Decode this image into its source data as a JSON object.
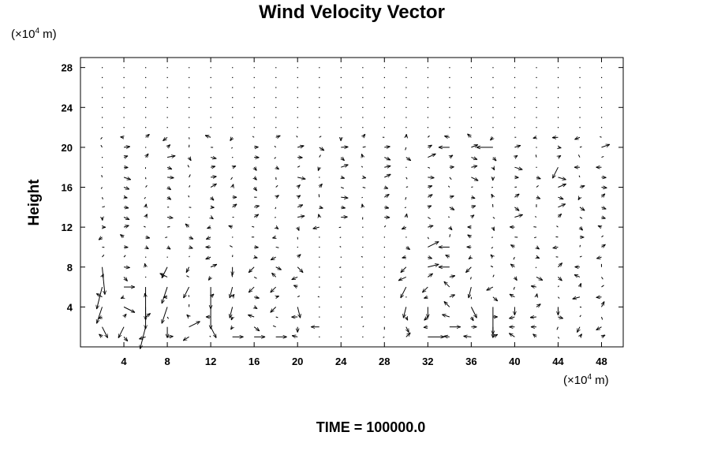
{
  "chart_data": {
    "type": "vector-field",
    "title": "Wind Velocity Vector",
    "xlabel": "",
    "ylabel": "Height",
    "x_unit_prefix": "(×10",
    "x_unit_exp": "4",
    "x_unit_suffix": " m)",
    "y_unit_prefix": "(×10",
    "y_unit_exp": "4",
    "y_unit_suffix": " m)",
    "xlim": [
      0,
      50
    ],
    "ylim": [
      0,
      29
    ],
    "x_ticks": [
      4,
      8,
      12,
      16,
      20,
      24,
      28,
      32,
      36,
      40,
      44,
      48
    ],
    "y_ticks": [
      4,
      8,
      12,
      16,
      20,
      24,
      28
    ],
    "grid": false,
    "footer": "TIME = 100000.0",
    "grid_x_step": 2,
    "grid_y_step": 2,
    "vectors": [
      {
        "x": 2,
        "y": 8,
        "u": 0.5,
        "v": -5
      },
      {
        "x": 2,
        "y": 6,
        "u": -1,
        "v": -4
      },
      {
        "x": 2,
        "y": 4,
        "u": -1,
        "v": -3
      },
      {
        "x": 2,
        "y": 2,
        "u": 1,
        "v": -2
      },
      {
        "x": 4,
        "y": 6,
        "u": 2,
        "v": 0
      },
      {
        "x": 4,
        "y": 4,
        "u": 2,
        "v": -1
      },
      {
        "x": 4,
        "y": 2,
        "u": -1,
        "v": -2
      },
      {
        "x": 6,
        "y": 6,
        "u": 0,
        "v": -6
      },
      {
        "x": 6,
        "y": 4,
        "u": 0,
        "v": -4
      },
      {
        "x": 6,
        "y": 2,
        "u": -1,
        "v": -4
      },
      {
        "x": 8,
        "y": 8,
        "u": -1,
        "v": -2
      },
      {
        "x": 8,
        "y": 6,
        "u": -1,
        "v": -3
      },
      {
        "x": 8,
        "y": 4,
        "u": -1,
        "v": -3
      },
      {
        "x": 8,
        "y": 2,
        "u": 0,
        "v": -2
      },
      {
        "x": 10,
        "y": 8,
        "u": -0.5,
        "v": -1
      },
      {
        "x": 10,
        "y": 6,
        "u": -1,
        "v": -2
      },
      {
        "x": 10,
        "y": 2,
        "u": 2,
        "v": 1
      },
      {
        "x": 12,
        "y": 6,
        "u": 0,
        "v": -4
      },
      {
        "x": 12,
        "y": 4,
        "u": 0,
        "v": -4
      },
      {
        "x": 12,
        "y": 2,
        "u": 1,
        "v": -2
      },
      {
        "x": 14,
        "y": 8,
        "u": 0,
        "v": -1.5
      },
      {
        "x": 14,
        "y": 6,
        "u": -0.5,
        "v": -2
      },
      {
        "x": 14,
        "y": 4,
        "u": -0.5,
        "v": -2
      },
      {
        "x": 14,
        "y": 1,
        "u": 2,
        "v": 0
      },
      {
        "x": 16,
        "y": 8,
        "u": -1,
        "v": -1
      },
      {
        "x": 16,
        "y": 6,
        "u": -1,
        "v": -1
      },
      {
        "x": 16,
        "y": 1,
        "u": 2,
        "v": 0
      },
      {
        "x": 18,
        "y": 8,
        "u": 1,
        "v": -0.5
      },
      {
        "x": 18,
        "y": 6,
        "u": -1,
        "v": -1
      },
      {
        "x": 18,
        "y": 4,
        "u": -1,
        "v": -1
      },
      {
        "x": 18,
        "y": 1,
        "u": 2,
        "v": 0
      },
      {
        "x": 20,
        "y": 8,
        "u": 1,
        "v": -1
      },
      {
        "x": 20,
        "y": 4,
        "u": 0.5,
        "v": -2
      },
      {
        "x": 20,
        "y": 2,
        "u": 0,
        "v": -1
      },
      {
        "x": 22,
        "y": 2,
        "u": -1.5,
        "v": 0
      },
      {
        "x": 28,
        "y": 2,
        "u": 0,
        "v": -0.5
      },
      {
        "x": 30,
        "y": 8,
        "u": -1,
        "v": -1
      },
      {
        "x": 30,
        "y": 6,
        "u": -1,
        "v": -2
      },
      {
        "x": 30,
        "y": 4,
        "u": -0.5,
        "v": -2
      },
      {
        "x": 30,
        "y": 2,
        "u": 0.5,
        "v": -1
      },
      {
        "x": 32,
        "y": 10,
        "u": 2,
        "v": 1
      },
      {
        "x": 32,
        "y": 8,
        "u": 2,
        "v": 0.5
      },
      {
        "x": 32,
        "y": 6,
        "u": -1,
        "v": -1
      },
      {
        "x": 32,
        "y": 4,
        "u": 0,
        "v": -2
      },
      {
        "x": 32,
        "y": 1,
        "u": 3,
        "v": 0
      },
      {
        "x": 34,
        "y": 10,
        "u": -2,
        "v": 0
      },
      {
        "x": 34,
        "y": 8,
        "u": -2,
        "v": 0
      },
      {
        "x": 34,
        "y": 6,
        "u": -1,
        "v": 1
      },
      {
        "x": 34,
        "y": 4,
        "u": -1,
        "v": 1
      },
      {
        "x": 34,
        "y": 2,
        "u": 2,
        "v": 0
      },
      {
        "x": 36,
        "y": 8,
        "u": -1,
        "v": -1
      },
      {
        "x": 36,
        "y": 6,
        "u": -0.5,
        "v": -2
      },
      {
        "x": 36,
        "y": 4,
        "u": 1,
        "v": -2
      },
      {
        "x": 36,
        "y": 2,
        "u": 1,
        "v": 0
      },
      {
        "x": 38,
        "y": 4,
        "u": 0,
        "v": -5
      },
      {
        "x": 38,
        "y": 2,
        "u": 0,
        "v": -2
      },
      {
        "x": 38,
        "y": 20,
        "u": -3,
        "v": 0
      },
      {
        "x": 34,
        "y": 20,
        "u": -2,
        "v": 0
      },
      {
        "x": 40,
        "y": 4,
        "u": 0,
        "v": -1.5
      },
      {
        "x": 40,
        "y": 2,
        "u": -1,
        "v": 0
      },
      {
        "x": 42,
        "y": 2,
        "u": -1,
        "v": 0
      },
      {
        "x": 44,
        "y": 4,
        "u": 0,
        "v": -1.5
      },
      {
        "x": 46,
        "y": 2,
        "u": -0.5,
        "v": -1
      },
      {
        "x": 48,
        "y": 4,
        "u": 0.5,
        "v": 1
      },
      {
        "x": 44,
        "y": 18,
        "u": -1,
        "v": -2
      },
      {
        "x": 46,
        "y": 18,
        "u": -1,
        "v": 0
      },
      {
        "x": 48,
        "y": 18,
        "u": -1,
        "v": 0
      }
    ]
  }
}
